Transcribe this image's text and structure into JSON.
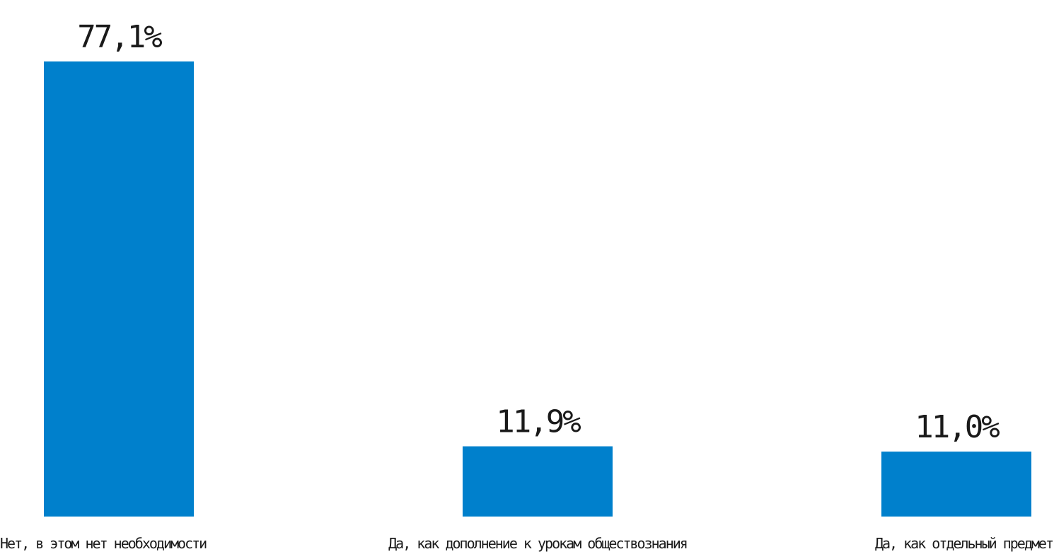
{
  "chart_data": {
    "type": "bar",
    "categories": [
      "Нет, в этом нет необходимости",
      "Да, как дополнение к урокам обществознания",
      "Да, как отдельный предмет"
    ],
    "values": [
      77.1,
      11.9,
      11.0
    ],
    "value_labels": [
      "77,1%",
      "11,9%",
      "11,0%"
    ],
    "unit": "%",
    "ylim": [
      0,
      77.1
    ],
    "grid": false,
    "legend": "none",
    "bar_color": "#0080CC"
  }
}
